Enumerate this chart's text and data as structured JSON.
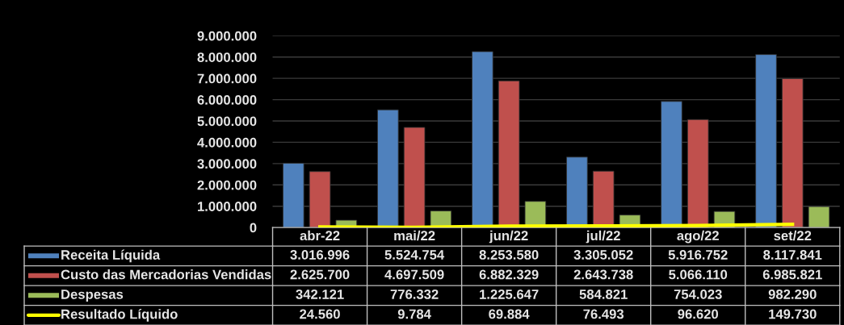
{
  "chart_data": {
    "type": "bar",
    "categories": [
      "abr-22",
      "mai/22",
      "jun/22",
      "jul/22",
      "ago/22",
      "set/22"
    ],
    "ylim": [
      0,
      9000000
    ],
    "yticks": [
      0,
      {
        "value": 1000000,
        "label": "1.000.000"
      },
      {
        "value": 2000000,
        "label": "2.000.000"
      },
      {
        "value": 3000000,
        "label": "3.000.000"
      },
      {
        "value": 4000000,
        "label": "4.000.000"
      },
      {
        "value": 5000000,
        "label": "5.000.000"
      },
      {
        "value": 6000000,
        "label": "6.000.000"
      },
      {
        "value": 7000000,
        "label": "7.000.000"
      },
      {
        "value": 8000000,
        "label": "8.000.000"
      },
      {
        "value": 9000000,
        "label": "9.000.000"
      }
    ],
    "grid": "y",
    "legend": "bottom",
    "series": [
      {
        "name": "Receita Líquida",
        "color": "#4f81bd",
        "values": [
          3016996,
          5524754,
          8253580,
          3305052,
          5916752,
          8117841
        ],
        "value_labels": [
          "3.016.996",
          "5.524.754",
          "8.253.580",
          "3.305.052",
          "5.916.752",
          "8.117.841"
        ]
      },
      {
        "name": "Custo das Mercadorias Vendidas",
        "color": "#c0504d",
        "values": [
          2625700,
          4697509,
          6882329,
          2643738,
          5066110,
          6985821
        ],
        "value_labels": [
          "2.625.700",
          "4.697.509",
          "6.882.329",
          "2.643.738",
          "5.066.110",
          "6.985.821"
        ]
      },
      {
        "name": "Despesas",
        "color": "#9bbb59",
        "values": [
          342121,
          776332,
          1225647,
          584821,
          754023,
          982290
        ],
        "value_labels": [
          "342.121",
          "776.332",
          "1.225.647",
          "584.821",
          "754.023",
          "982.290"
        ]
      },
      {
        "name": "Resultado Líquido",
        "type": "line",
        "color": "#ffff00",
        "values": [
          24560,
          9784,
          69884,
          76493,
          96620,
          149730
        ],
        "value_labels": [
          "24.560",
          "9.784",
          "69.884",
          "76.493",
          "96.620",
          "149.730"
        ]
      }
    ]
  }
}
